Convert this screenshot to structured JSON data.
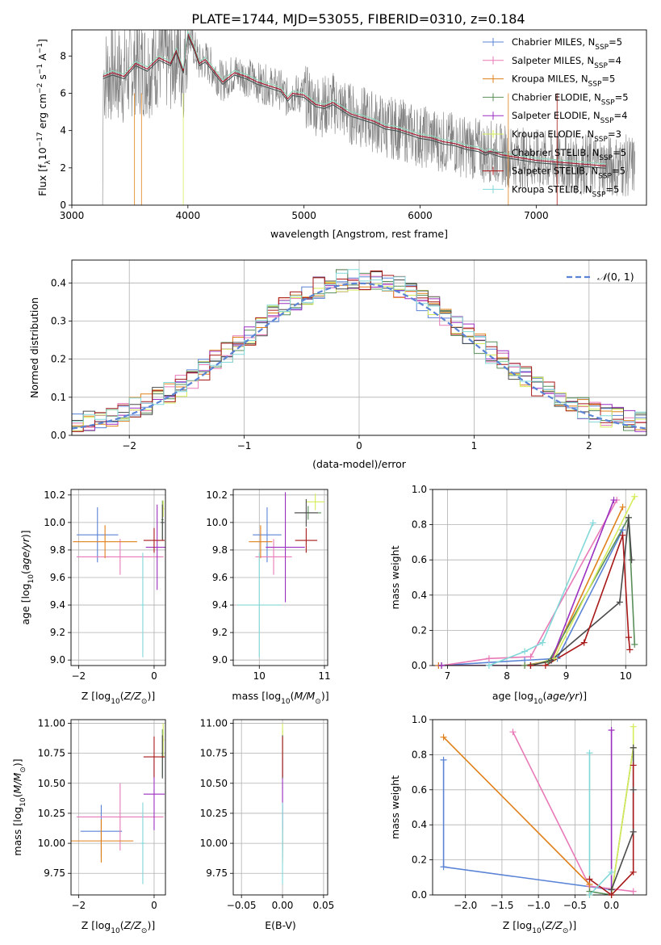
{
  "figure_title": "PLATE=1744, MJD=53055, FIBERID=0310, z=0.184",
  "colors": {
    "chabrier_miles": "#5b84d6",
    "salpeter_miles": "#e87ab8",
    "kroupa_miles": "#e0801b",
    "chabrier_elodie": "#5a8f5a",
    "salpeter_elodie": "#9b2fbf",
    "kroupa_elodie": "#d6ec5a",
    "chabrier_stelib": "#4a4a4a",
    "salpeter_stelib": "#a81818",
    "kroupa_stelib": "#82d8d8",
    "data": "#808080"
  },
  "chart_data": [
    {
      "id": "spectrum",
      "type": "line",
      "xlabel": "wavelength [Angstrom, rest frame]",
      "ylabel": "Flux [fλ10⁻¹⁷ erg cm⁻² s⁻¹ A⁻¹]",
      "xlim": [
        3000,
        7950
      ],
      "ylim": [
        0,
        9.4
      ],
      "xticks": [
        3000,
        4000,
        5000,
        6000,
        7000
      ],
      "yticks": [
        0,
        2,
        4,
        6,
        8
      ],
      "legend_placement": "upper-right",
      "legend": [
        {
          "base": "Chabrier MILES, N",
          "sub": "SSP",
          "tail": "=5",
          "color_key": "chabrier_miles"
        },
        {
          "base": "Salpeter MILES, N",
          "sub": "SSP",
          "tail": "=4",
          "color_key": "salpeter_miles"
        },
        {
          "base": "Kroupa MILES, N",
          "sub": "SSP",
          "tail": "=5",
          "color_key": "kroupa_miles"
        },
        {
          "base": "Chabrier ELODIE, N",
          "sub": "SSP",
          "tail": "=5",
          "color_key": "chabrier_elodie"
        },
        {
          "base": "Salpeter ELODIE, N",
          "sub": "SSP",
          "tail": "=4",
          "color_key": "salpeter_elodie"
        },
        {
          "base": "Kroupa ELODIE, N",
          "sub": "SSP",
          "tail": "=3",
          "color_key": "kroupa_elodie"
        },
        {
          "base": "Chabrier STELIB, N",
          "sub": "SSP",
          "tail": "=5",
          "color_key": "chabrier_stelib"
        },
        {
          "base": "Salpeter STELIB, N",
          "sub": "SSP",
          "tail": "=5",
          "color_key": "salpeter_stelib"
        },
        {
          "base": "Kroupa STELIB, N",
          "sub": "SSP",
          "tail": "=5",
          "color_key": "kroupa_stelib"
        }
      ],
      "model_wavelength": [
        3270,
        3350,
        3450,
        3550,
        3650,
        3750,
        3850,
        3900,
        3960,
        4000,
        4050,
        4100,
        4150,
        4200,
        4300,
        4400,
        4500,
        4600,
        4700,
        4800,
        4860,
        4900,
        5000,
        5100,
        5175,
        5250,
        5400,
        5500,
        5600,
        5700,
        5800,
        5900,
        6000,
        6100,
        6200,
        6300,
        6400,
        6500,
        6563,
        6600,
        6700,
        6800,
        7000,
        7200,
        7400,
        7600
      ],
      "model_flux": [
        6.9,
        7.1,
        6.9,
        7.6,
        7.3,
        7.9,
        7.6,
        8.3,
        7.2,
        9.2,
        8.5,
        7.6,
        7.8,
        7.4,
        6.6,
        7.1,
        6.9,
        6.6,
        6.4,
        6.2,
        5.7,
        6.0,
        5.9,
        5.4,
        5.3,
        5.5,
        4.9,
        4.7,
        4.5,
        4.2,
        4.1,
        3.9,
        3.7,
        3.6,
        3.4,
        3.3,
        3.1,
        3.0,
        2.8,
        2.9,
        2.7,
        2.6,
        2.4,
        2.3,
        2.2,
        2.1
      ]
    },
    {
      "id": "residual-histogram",
      "type": "histogram",
      "xlabel": "(data-model)/error",
      "ylabel": "Normed distribution",
      "xlim": [
        -2.5,
        2.5
      ],
      "ylim": [
        0,
        0.46
      ],
      "xticks": [
        -2,
        -1,
        0,
        1,
        2
      ],
      "yticks": [
        0.0,
        0.1,
        0.2,
        0.3,
        0.4
      ],
      "legend_placement": "upper-right",
      "reference_curve": "N(0,1)",
      "bin_width": 0.1
    },
    {
      "id": "age-vs-Z",
      "type": "scatter",
      "xlabel": "Z [log₁₀(Z/Z⊙)]",
      "ylabel": "age  [log₁₀(age/yr)]",
      "xlim": [
        -2.2,
        0.3
      ],
      "ylim": [
        8.96,
        10.24
      ],
      "xticks": [
        -2,
        0
      ],
      "yticks": [
        9.0,
        9.2,
        9.4,
        9.6,
        9.8,
        10.0,
        10.2
      ],
      "points": [
        {
          "key": "chabrier_miles",
          "x": -1.5,
          "xerr": 0.55,
          "y": 9.91,
          "yerr": 0.2
        },
        {
          "key": "salpeter_miles",
          "x": -0.9,
          "xerr": 1.15,
          "y": 9.75,
          "yerr": 0.13
        },
        {
          "key": "kroupa_miles",
          "x": -1.3,
          "xerr": 0.85,
          "y": 9.86,
          "yerr": 0.12
        },
        {
          "key": "chabrier_elodie",
          "x": 0.22,
          "xerr": 0.03,
          "y": 10.02,
          "yerr": 0.14
        },
        {
          "key": "salpeter_elodie",
          "x": 0.08,
          "xerr": 0.3,
          "y": 9.82,
          "yerr": 0.31
        },
        {
          "key": "kroupa_elodie",
          "x": 0.24,
          "xerr": 0.03,
          "y": 10.1,
          "yerr": 0.06
        },
        {
          "key": "chabrier_stelib",
          "x": 0.22,
          "xerr": 0.05,
          "y": 10.0,
          "yerr": 0.13
        },
        {
          "key": "salpeter_stelib",
          "x": 0.0,
          "xerr": 0.28,
          "y": 9.87,
          "yerr": 0.09
        },
        {
          "key": "kroupa_stelib",
          "x": -0.3,
          "xerr": 0.05,
          "y": 9.4,
          "yerr": 0.38
        }
      ]
    },
    {
      "id": "age-vs-mass",
      "type": "scatter",
      "xlabel": "mass [log₁₀(M/M⊙)]",
      "ylabel": "",
      "xlim": [
        9.6,
        11.05
      ],
      "ylim": [
        8.96,
        10.24
      ],
      "xticks": [
        10,
        11
      ],
      "yticks": [
        9.0,
        9.2,
        9.4,
        9.6,
        9.8,
        10.0,
        10.2
      ],
      "points": [
        {
          "key": "chabrier_miles",
          "x": 10.12,
          "xerr": 0.22,
          "y": 9.91,
          "yerr": 0.2
        },
        {
          "key": "salpeter_miles",
          "x": 10.22,
          "xerr": 0.28,
          "y": 9.75,
          "yerr": 0.13
        },
        {
          "key": "kroupa_miles",
          "x": 10.02,
          "xerr": 0.18,
          "y": 9.86,
          "yerr": 0.12
        },
        {
          "key": "chabrier_elodie",
          "x": 10.75,
          "xerr": 0.2,
          "y": 10.07,
          "yerr": 0.05
        },
        {
          "key": "salpeter_elodie",
          "x": 10.4,
          "xerr": 0.3,
          "y": 9.82,
          "yerr": 0.4
        },
        {
          "key": "kroupa_elodie",
          "x": 10.86,
          "xerr": 0.14,
          "y": 10.15,
          "yerr": 0.06
        },
        {
          "key": "chabrier_stelib",
          "x": 10.72,
          "xerr": 0.18,
          "y": 10.07,
          "yerr": 0.1
        },
        {
          "key": "salpeter_stelib",
          "x": 10.72,
          "xerr": 0.17,
          "y": 9.87,
          "yerr": 0.09
        },
        {
          "key": "kroupa_stelib",
          "x": 10.0,
          "xerr": 0.34,
          "y": 9.4,
          "yerr": 0.38
        }
      ]
    },
    {
      "id": "mass-weight-vs-age",
      "type": "line",
      "xlabel": "age  [log₁₀(age/yr)]",
      "ylabel": "mass weight",
      "xlim": [
        6.75,
        10.35
      ],
      "ylim": [
        0,
        1.0
      ],
      "xticks": [
        7,
        8,
        9,
        10
      ],
      "yticks": [
        0.0,
        0.2,
        0.4,
        0.6,
        0.8,
        1.0
      ],
      "series": [
        {
          "key": "chabrier_miles",
          "x": [
            6.85,
            8.3,
            8.85,
            9.95
          ],
          "y": [
            0.0,
            0.03,
            0.04,
            0.77
          ]
        },
        {
          "key": "salpeter_miles",
          "x": [
            6.9,
            7.7,
            8.4,
            9.85
          ],
          "y": [
            0.0,
            0.04,
            0.05,
            0.94
          ]
        },
        {
          "key": "kroupa_miles",
          "x": [
            6.85,
            8.3,
            8.75,
            9.95
          ],
          "y": [
            0.0,
            0.0,
            0.03,
            0.9
          ]
        },
        {
          "key": "chabrier_elodie",
          "x": [
            6.9,
            8.3,
            8.7,
            10.05,
            10.15
          ],
          "y": [
            0.0,
            0.0,
            0.02,
            0.84,
            0.12
          ]
        },
        {
          "key": "salpeter_elodie",
          "x": [
            6.9,
            8.4,
            8.75,
            9.8
          ],
          "y": [
            0.0,
            0.0,
            0.03,
            0.94
          ]
        },
        {
          "key": "kroupa_elodie",
          "x": [
            8.4,
            8.8,
            10.15
          ],
          "y": [
            0.0,
            0.04,
            0.96
          ]
        },
        {
          "key": "chabrier_stelib",
          "x": [
            8.4,
            8.75,
            9.9,
            10.05,
            10.1
          ],
          "y": [
            0.0,
            0.03,
            0.36,
            0.84,
            0.6
          ]
        },
        {
          "key": "salpeter_stelib",
          "x": [
            8.4,
            8.65,
            9.3,
            9.95,
            10.05,
            10.07
          ],
          "y": [
            0.0,
            0.0,
            0.13,
            0.74,
            0.16,
            0.09
          ]
        },
        {
          "key": "kroupa_stelib",
          "x": [
            7.7,
            8.3,
            8.6,
            9.45
          ],
          "y": [
            0.0,
            0.08,
            0.13,
            0.81
          ]
        }
      ]
    },
    {
      "id": "mass-vs-Z",
      "type": "scatter",
      "xlabel": "Z [log₁₀(Z/Z⊙)]",
      "ylabel": "mass [log₁₀(M/M⊙)]",
      "xlim": [
        -2.2,
        0.3
      ],
      "ylim": [
        9.57,
        11.03
      ],
      "xticks": [
        -2,
        0
      ],
      "yticks": [
        9.75,
        10.0,
        10.25,
        10.5,
        10.75,
        11.0
      ],
      "points": [
        {
          "key": "chabrier_miles",
          "x": -1.4,
          "xerr": 0.55,
          "y": 10.1,
          "yerr": 0.22
        },
        {
          "key": "salpeter_miles",
          "x": -0.9,
          "xerr": 1.15,
          "y": 10.22,
          "yerr": 0.28
        },
        {
          "key": "kroupa_miles",
          "x": -1.4,
          "xerr": 0.85,
          "y": 10.02,
          "yerr": 0.18
        },
        {
          "key": "chabrier_elodie",
          "x": 0.22,
          "xerr": 0.03,
          "y": 10.75,
          "yerr": 0.2
        },
        {
          "key": "salpeter_elodie",
          "x": 0.0,
          "xerr": 0.28,
          "y": 10.41,
          "yerr": 0.3
        },
        {
          "key": "kroupa_elodie",
          "x": 0.24,
          "xerr": 0.03,
          "y": 10.86,
          "yerr": 0.14
        },
        {
          "key": "chabrier_stelib",
          "x": 0.22,
          "xerr": 0.05,
          "y": 10.72,
          "yerr": 0.18
        },
        {
          "key": "salpeter_stelib",
          "x": 0.0,
          "xerr": 0.28,
          "y": 10.72,
          "yerr": 0.17
        },
        {
          "key": "kroupa_stelib",
          "x": -0.3,
          "xerr": 0.05,
          "y": 10.0,
          "yerr": 0.34
        }
      ]
    },
    {
      "id": "mass-vs-ebv",
      "type": "scatter",
      "xlabel": "E(B-V)",
      "ylabel": "",
      "xlim": [
        -0.06,
        0.055
      ],
      "ylim": [
        9.57,
        11.03
      ],
      "xticks": [
        -0.05,
        0.0,
        0.05
      ],
      "xtick_labels": [
        "−0.05",
        "0.00",
        "0.05"
      ],
      "yticks": [
        9.75,
        10.0,
        10.25,
        10.5,
        10.75,
        11.0
      ],
      "points": [
        {
          "key": "chabrier_miles",
          "x": 0,
          "y": 10.1,
          "yerr": 0.22
        },
        {
          "key": "salpeter_miles",
          "x": 0,
          "y": 10.22,
          "yerr": 0.28
        },
        {
          "key": "kroupa_miles",
          "x": 0,
          "y": 10.02,
          "yerr": 0.18
        },
        {
          "key": "chabrier_elodie",
          "x": 0,
          "y": 10.75,
          "yerr": 0.2
        },
        {
          "key": "salpeter_elodie",
          "x": 0,
          "y": 10.41,
          "yerr": 0.3
        },
        {
          "key": "kroupa_elodie",
          "x": 0,
          "y": 10.86,
          "yerr": 0.14
        },
        {
          "key": "chabrier_stelib",
          "x": 0,
          "y": 10.72,
          "yerr": 0.18
        },
        {
          "key": "salpeter_stelib",
          "x": 0,
          "y": 10.72,
          "yerr": 0.17
        },
        {
          "key": "kroupa_stelib",
          "x": 0,
          "y": 10.0,
          "yerr": 0.34
        }
      ]
    },
    {
      "id": "mass-weight-vs-Z",
      "type": "line",
      "xlabel": "Z [log₁₀(Z/Z⊙)]",
      "ylabel": "mass weight",
      "xlim": [
        -2.45,
        0.48
      ],
      "ylim": [
        0,
        1.0
      ],
      "xticks": [
        -2.0,
        -1.5,
        -1.0,
        -0.5,
        0.0
      ],
      "xtick_labels": [
        "−2.0",
        "−1.5",
        "−1.0",
        "−0.5",
        "0.0"
      ],
      "yticks": [
        0.0,
        0.2,
        0.4,
        0.6,
        0.8,
        1.0
      ],
      "series": [
        {
          "key": "chabrier_miles",
          "x": [
            -2.3,
            -2.3,
            0.0,
            0.0
          ],
          "y": [
            0.77,
            0.16,
            0.03,
            0.0
          ]
        },
        {
          "key": "salpeter_miles",
          "x": [
            -1.35,
            -0.3,
            0.3
          ],
          "y": [
            0.93,
            0.05,
            0.02
          ]
        },
        {
          "key": "kroupa_miles",
          "x": [
            -2.3,
            -0.3,
            -0.3
          ],
          "y": [
            0.9,
            0.06,
            0.0
          ]
        },
        {
          "key": "chabrier_elodie",
          "x": [
            -0.3,
            0.0,
            0.3
          ],
          "y": [
            0.02,
            0.0,
            0.84
          ]
        },
        {
          "key": "salpeter_elodie",
          "x": [
            0.0,
            0.0
          ],
          "y": [
            0.94,
            0.0
          ]
        },
        {
          "key": "kroupa_elodie",
          "x": [
            0.0,
            0.3,
            0.3
          ],
          "y": [
            0.0,
            0.84,
            0.96
          ]
        },
        {
          "key": "chabrier_stelib",
          "x": [
            0.0,
            0.3,
            0.3,
            0.3
          ],
          "y": [
            0.03,
            0.36,
            0.6,
            0.84
          ]
        },
        {
          "key": "salpeter_stelib",
          "x": [
            -0.3,
            0.0,
            0.3,
            0.3
          ],
          "y": [
            0.09,
            0.0,
            0.13,
            0.74
          ]
        },
        {
          "key": "kroupa_stelib",
          "x": [
            -0.3,
            -0.3,
            0.0
          ],
          "y": [
            0.81,
            0.0,
            0.13
          ]
        }
      ]
    }
  ]
}
